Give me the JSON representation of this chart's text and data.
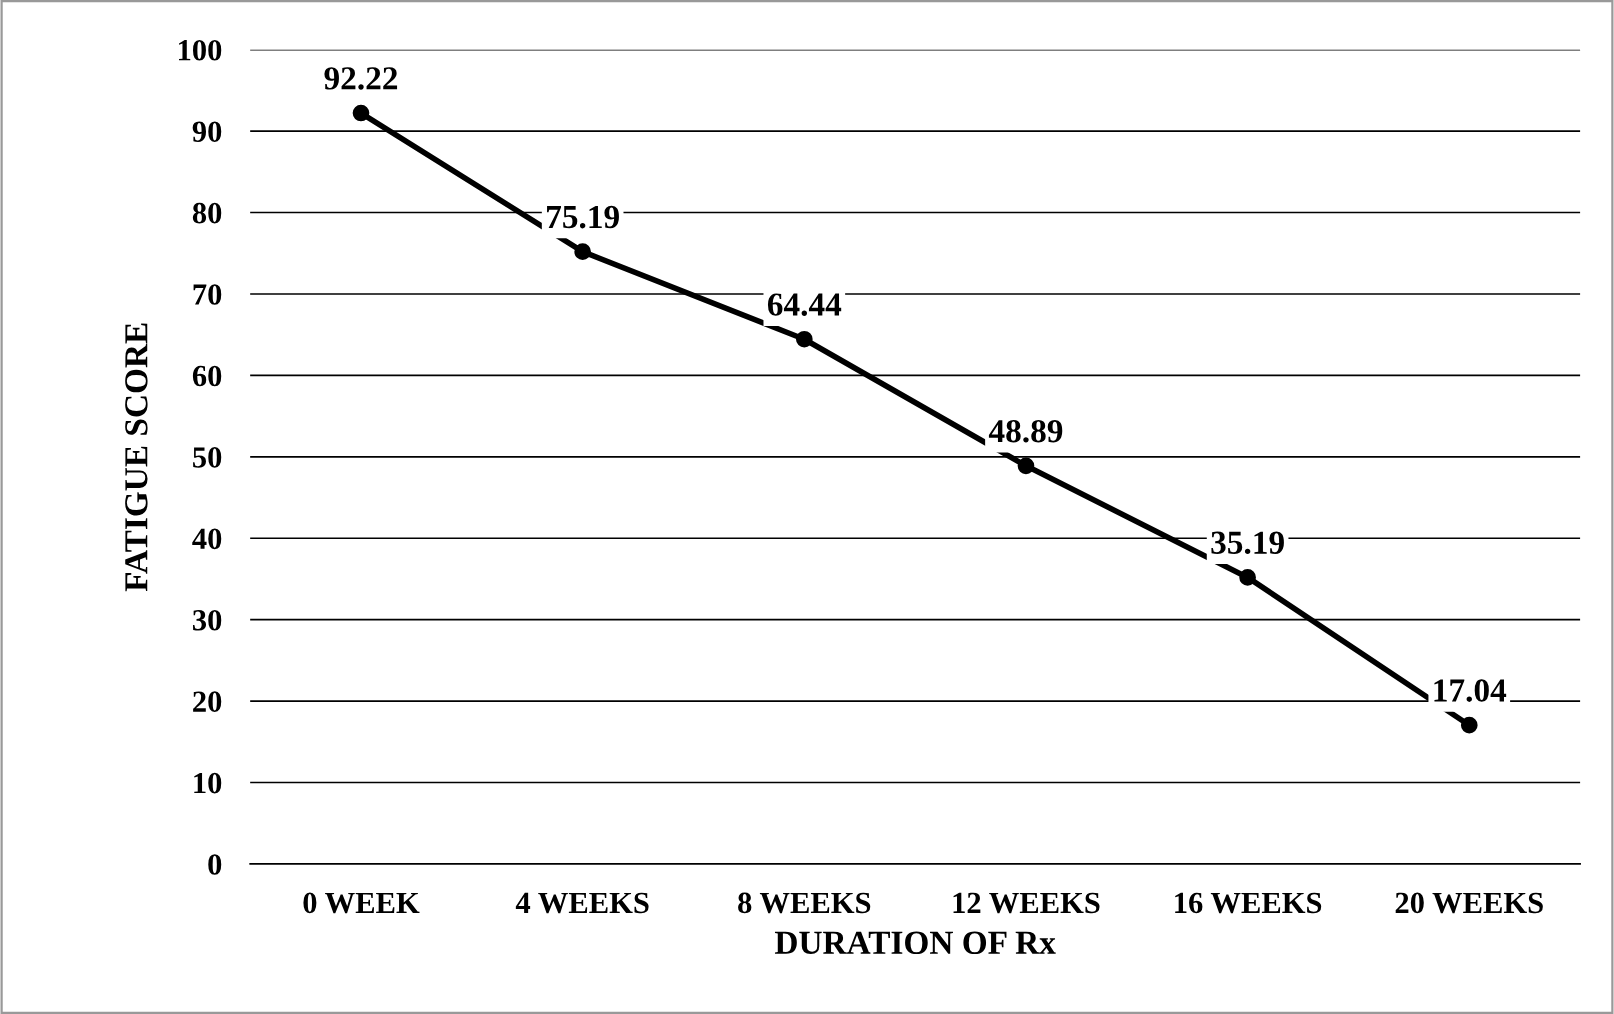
{
  "chart_data": {
    "type": "line",
    "xlabel": "DURATION OF Rx",
    "ylabel": "FATIGUE SCORE",
    "categories": [
      "0 WEEK",
      "4 WEEKS",
      "8 WEEKS",
      "12 WEEKS",
      "16 WEEKS",
      "20 WEEKS"
    ],
    "values": [
      92.22,
      75.19,
      64.44,
      48.89,
      35.19,
      17.04
    ],
    "color": "#000000",
    "marker": "circle",
    "line_style": "solid",
    "data_labels": true,
    "ylim": [
      0,
      100
    ],
    "yticks": [
      0,
      10,
      20,
      30,
      40,
      50,
      60,
      70,
      80,
      90,
      100
    ],
    "grid": "y",
    "legend": false
  }
}
